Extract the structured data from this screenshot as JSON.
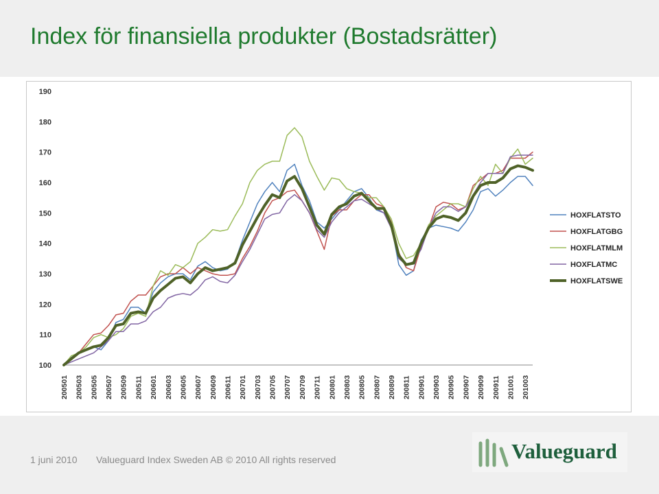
{
  "slide": {
    "title": "Index för finansiella produkter (Bostadsrätter)",
    "footer_date": "1 juni 2010",
    "footer_copyright": "Valueguard Index Sweden AB © 2010 All rights reserved",
    "logo_text": "Valueguard"
  },
  "colors": {
    "title": "#1f7a2e",
    "logo": "#1e5f3c",
    "logo_mark": "#7ea87e"
  },
  "chart_data": {
    "type": "line",
    "title": "",
    "xlabel": "",
    "ylabel": "",
    "ylim": [
      100,
      190
    ],
    "yticks": [
      100,
      110,
      120,
      130,
      140,
      150,
      160,
      170,
      180,
      190
    ],
    "grid": false,
    "legend_position": "right",
    "x": [
      "200501",
      "200502",
      "200503",
      "200504",
      "200505",
      "200506",
      "200507",
      "200508",
      "200509",
      "200510",
      "200511",
      "200512",
      "200601",
      "200602",
      "200603",
      "200604",
      "200605",
      "200606",
      "200607",
      "200608",
      "200609",
      "200610",
      "200611",
      "200612",
      "200701",
      "200702",
      "200703",
      "200704",
      "200705",
      "200706",
      "200707",
      "200708",
      "200709",
      "200710",
      "200711",
      "200712",
      "200801",
      "200802",
      "200803",
      "200804",
      "200805",
      "200806",
      "200807",
      "200808",
      "200809",
      "200810",
      "200811",
      "200812",
      "200901",
      "200902",
      "200903",
      "200904",
      "200905",
      "200906",
      "200907",
      "200908",
      "200909",
      "200910",
      "200911",
      "200912",
      "201001",
      "201002",
      "201003",
      "201004"
    ],
    "xtick_labels": [
      "200501",
      "200503",
      "200505",
      "200507",
      "200509",
      "200511",
      "200601",
      "200603",
      "200605",
      "200607",
      "200609",
      "200611",
      "200701",
      "200703",
      "200705",
      "200707",
      "200709",
      "200711",
      "200801",
      "200803",
      "200805",
      "200807",
      "200809",
      "200811",
      "200901",
      "200903",
      "200905",
      "200907",
      "200909",
      "200911",
      "201001",
      "201003"
    ],
    "series": [
      {
        "name": "HOXFLATSTO",
        "color": "#4f81bd",
        "width": 1.5,
        "values": [
          100,
          102.5,
          104,
          105,
          106,
          105,
          108,
          114,
          115,
          119,
          119,
          117,
          124,
          127,
          129,
          130,
          130,
          128,
          132.5,
          134,
          132,
          131,
          131.5,
          134,
          141,
          147,
          153,
          157,
          160,
          157,
          164,
          166,
          159,
          154,
          147,
          145,
          148,
          151,
          154,
          157,
          158,
          155,
          151,
          150,
          146,
          133,
          129.5,
          131,
          141,
          145,
          146,
          145.5,
          145,
          144,
          147,
          151,
          157,
          158,
          155.5,
          157.5,
          160,
          162,
          162,
          159
        ]
      },
      {
        "name": "HOXFLATGBG",
        "color": "#c0504d",
        "width": 1.5,
        "values": [
          100,
          102,
          104,
          107,
          110,
          110.5,
          113,
          116.5,
          117,
          121,
          123,
          123,
          126,
          129,
          130,
          130,
          132,
          130,
          132,
          131,
          130,
          129.5,
          129.5,
          130,
          135,
          139,
          144,
          150,
          154,
          155,
          157,
          157.5,
          154,
          150,
          144,
          138,
          149,
          151,
          151,
          154,
          156,
          156,
          153,
          152,
          147,
          137,
          132,
          131,
          139,
          145,
          152,
          153.5,
          153,
          151,
          152,
          159,
          161,
          163,
          163,
          164,
          168,
          168,
          168,
          170
        ]
      },
      {
        "name": "HOXFLATMLM",
        "color": "#9bbb59",
        "width": 1.5,
        "values": [
          100,
          103,
          104,
          106,
          109,
          110,
          109,
          110,
          112,
          116,
          117,
          116,
          126,
          131,
          129.5,
          133,
          132,
          134,
          140,
          142,
          144.5,
          144,
          144.5,
          149,
          153,
          160,
          164,
          166,
          167,
          167,
          175.5,
          178,
          175,
          167,
          162,
          157.5,
          161.5,
          161,
          158,
          157,
          156.5,
          155,
          155,
          152,
          148,
          140,
          135,
          136,
          140,
          146,
          149,
          151,
          153,
          153,
          152,
          158,
          162,
          159,
          166,
          163,
          168,
          171,
          166,
          168
        ]
      },
      {
        "name": "HOXFLATMC",
        "color": "#8064a2",
        "width": 1.5,
        "values": [
          100,
          101,
          102,
          103,
          104,
          106,
          108,
          111,
          111,
          113.5,
          113.5,
          114.5,
          117.5,
          119,
          122,
          123,
          123.5,
          123,
          125,
          128,
          129,
          127.5,
          127,
          129.5,
          134,
          138,
          143,
          148,
          149.5,
          150,
          154,
          156,
          154,
          150,
          144.5,
          142,
          147,
          150,
          152,
          154,
          154.5,
          153,
          151.5,
          150,
          145,
          135,
          133,
          134,
          138,
          145,
          150,
          152,
          152,
          150.5,
          152,
          156,
          160,
          163,
          163,
          163,
          168.5,
          169,
          169,
          169
        ]
      },
      {
        "name": "HOXFLATSWE",
        "color": "#4f6228",
        "width": 4,
        "values": [
          100,
          102,
          104,
          105,
          106,
          106.5,
          109,
          113,
          113.5,
          117,
          117.5,
          117,
          122,
          124.5,
          126.5,
          128.5,
          129,
          127,
          130,
          132,
          131,
          131.5,
          132,
          133.5,
          139.5,
          144,
          148.5,
          152.5,
          156,
          155,
          160.5,
          162,
          158,
          152,
          146,
          143,
          149.5,
          152,
          153,
          155.5,
          156.5,
          154,
          151.5,
          151.5,
          146,
          136,
          133,
          133.5,
          140,
          145,
          148,
          149,
          148.5,
          147.5,
          150,
          155.5,
          159,
          160,
          160,
          161.5,
          164.5,
          165.5,
          165,
          164
        ]
      }
    ]
  }
}
